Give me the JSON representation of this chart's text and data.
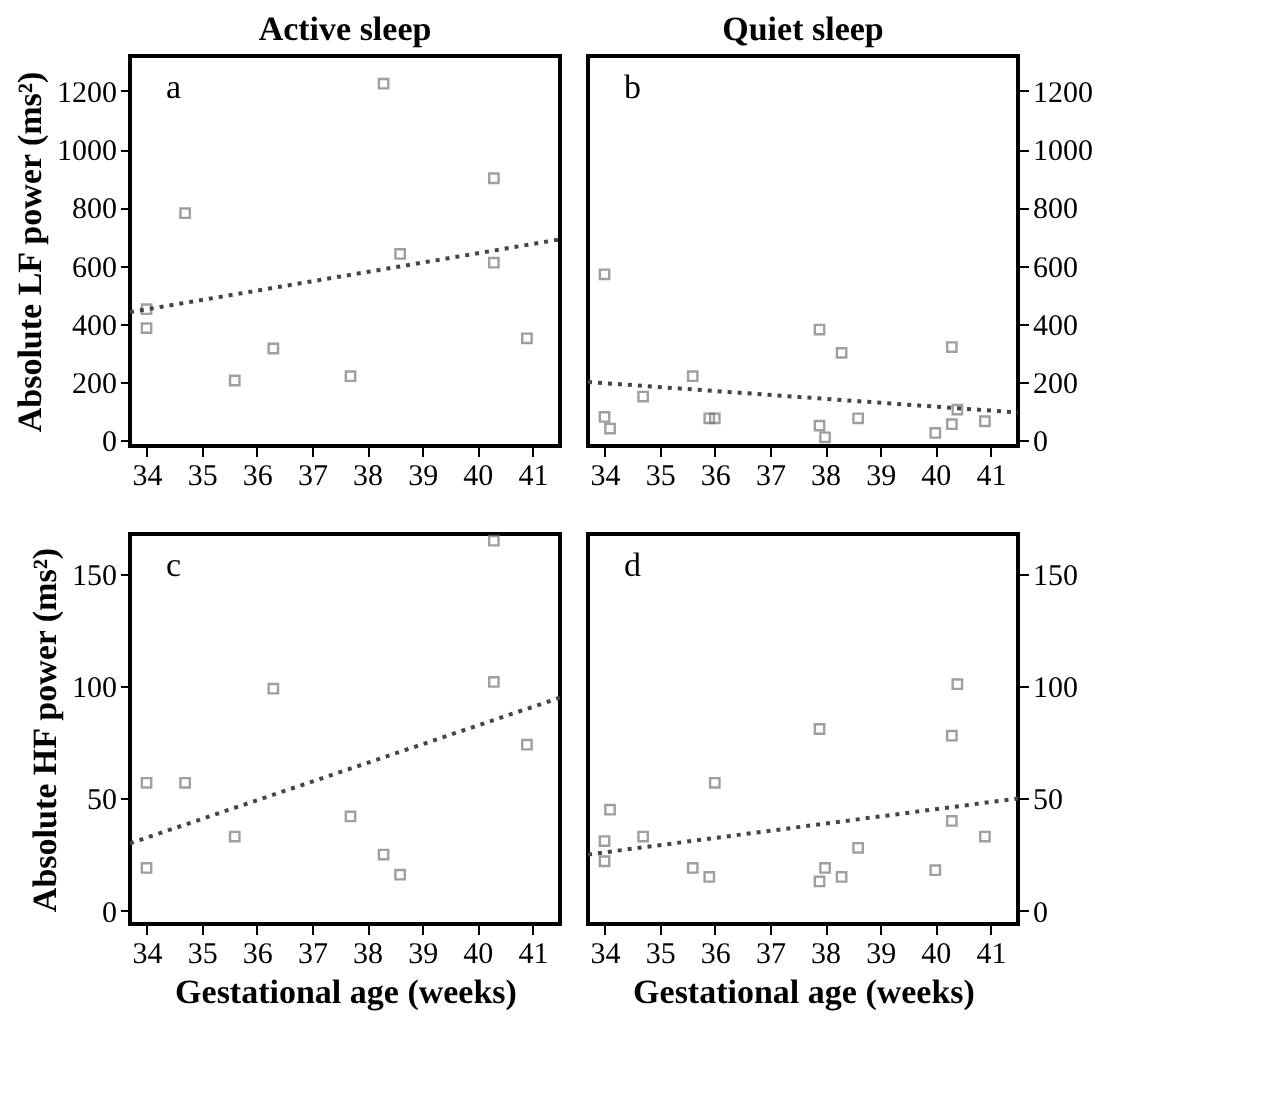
{
  "chart_data": [
    {
      "type": "scatter",
      "title": "Active sleep",
      "ylabel": "Absolute LF power (ms²)",
      "annotations": [
        "a"
      ],
      "xlim": [
        33.7,
        41.5
      ],
      "xticks": [
        34,
        35,
        36,
        37,
        38,
        39,
        40,
        41
      ],
      "ylim": [
        -20,
        1320
      ],
      "yticks": [
        0,
        200,
        400,
        600,
        800,
        1000,
        1200
      ],
      "grid": false,
      "series": [
        {
          "marker": "square",
          "color": "#777777",
          "x": [
            34,
            34,
            34.7,
            35.6,
            36.3,
            37.7,
            38.3,
            38.6,
            40.3,
            40.3,
            40.9
          ],
          "values": [
            450,
            385,
            780,
            205,
            315,
            220,
            1225,
            640,
            900,
            610,
            350
          ]
        },
        {
          "type": "line",
          "line_style": "dotted",
          "color": "#444444",
          "x": [
            33.7,
            41.5
          ],
          "values": [
            440,
            690
          ]
        }
      ]
    },
    {
      "type": "scatter",
      "title": "Quiet sleep",
      "annotations": [
        "b"
      ],
      "xlim": [
        33.7,
        41.5
      ],
      "xticks": [
        34,
        35,
        36,
        37,
        38,
        39,
        40,
        41
      ],
      "y2lim": [
        -20,
        1320
      ],
      "y2ticks": [
        0,
        200,
        400,
        600,
        800,
        1000,
        1200
      ],
      "grid": false,
      "series": [
        {
          "axis": "y2",
          "marker": "square",
          "color": "#777777",
          "x": [
            34,
            34,
            34.1,
            34.7,
            35.6,
            35.9,
            36,
            37.9,
            37.9,
            38,
            38.3,
            38.6,
            40,
            40.3,
            40.3,
            40.4,
            40.9
          ],
          "values": [
            570,
            80,
            40,
            150,
            220,
            75,
            75,
            380,
            50,
            10,
            300,
            75,
            25,
            320,
            55,
            105,
            65
          ]
        },
        {
          "type": "line",
          "axis": "y2",
          "line_style": "dotted",
          "color": "#444444",
          "x": [
            33.7,
            41.5
          ],
          "values": [
            200,
            95
          ]
        }
      ]
    },
    {
      "type": "scatter",
      "xlabel": "Gestational age (weeks)",
      "ylabel": "Absolute HF power (ms²)",
      "annotations": [
        "c"
      ],
      "xlim": [
        33.7,
        41.5
      ],
      "xticks": [
        34,
        35,
        36,
        37,
        38,
        39,
        40,
        41
      ],
      "ylim": [
        -6,
        168
      ],
      "yticks": [
        0,
        50,
        100,
        150
      ],
      "grid": false,
      "series": [
        {
          "marker": "square",
          "color": "#777777",
          "x": [
            34,
            34,
            34.7,
            35.6,
            36.3,
            37.7,
            38.3,
            38.6,
            40.3,
            40.3,
            40.9
          ],
          "values": [
            57,
            19,
            57,
            33,
            99,
            42,
            25,
            16,
            165,
            102,
            74
          ]
        },
        {
          "type": "line",
          "line_style": "dotted",
          "color": "#444444",
          "x": [
            33.7,
            41.5
          ],
          "values": [
            30,
            95
          ]
        }
      ]
    },
    {
      "type": "scatter",
      "xlabel": "Gestational age (weeks)",
      "annotations": [
        "d"
      ],
      "xlim": [
        33.7,
        41.5
      ],
      "xticks": [
        34,
        35,
        36,
        37,
        38,
        39,
        40,
        41
      ],
      "y2lim": [
        -6,
        168
      ],
      "y2ticks": [
        0,
        50,
        100,
        150
      ],
      "grid": false,
      "series": [
        {
          "axis": "y2",
          "marker": "square",
          "color": "#777777",
          "x": [
            34,
            34,
            34.1,
            34.7,
            35.6,
            35.9,
            36,
            37.9,
            37.9,
            38,
            38.3,
            38.6,
            40,
            40.3,
            40.3,
            40.4,
            40.9
          ],
          "values": [
            31,
            22,
            45,
            33,
            19,
            15,
            57,
            13,
            81,
            19,
            15,
            28,
            18,
            78,
            40,
            101,
            33
          ]
        },
        {
          "type": "line",
          "axis": "y2",
          "line_style": "dotted",
          "color": "#444444",
          "x": [
            33.7,
            41.5
          ],
          "values": [
            25,
            50
          ]
        }
      ]
    }
  ]
}
